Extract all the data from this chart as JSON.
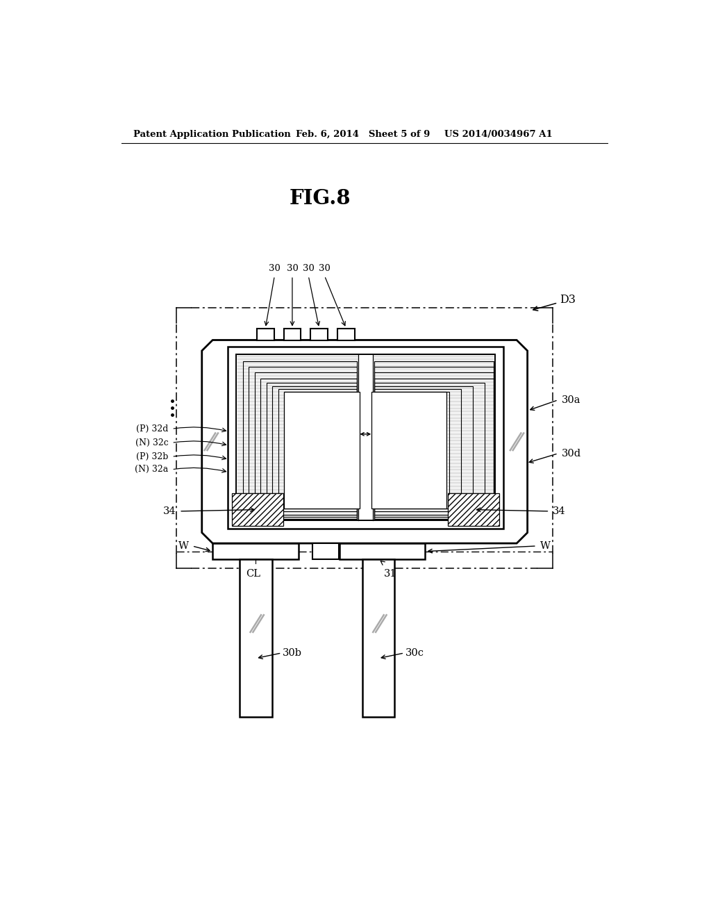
{
  "title": "FIG.8",
  "header_left": "Patent Application Publication",
  "header_mid": "Feb. 6, 2014   Sheet 5 of 9",
  "header_right": "US 2014/0034967 A1",
  "bg_color": "#ffffff",
  "lc": "#000000",
  "fs": 10.5,
  "hfs": 9.5,
  "tfs": 21
}
